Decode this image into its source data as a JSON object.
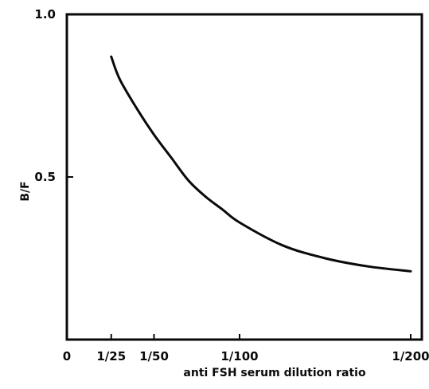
{
  "chart_data": {
    "type": "line",
    "xlabel": "anti FSH serum dilution ratio",
    "ylabel": "B/F",
    "x_tick_labels": [
      "0",
      "1/25",
      "1/50",
      "1/100",
      "1/200"
    ],
    "x_tick_values": [
      0,
      25,
      50,
      100,
      200
    ],
    "y_tick_labels": [
      "1.0",
      "0.5"
    ],
    "y_tick_values": [
      1.0,
      0.5
    ],
    "xlim": [
      0,
      200
    ],
    "ylim": [
      0,
      1.0
    ],
    "grid": false,
    "series": [
      {
        "x": [
          25,
          30,
          40,
          50,
          60,
          70,
          80,
          90,
          100,
          125,
          150,
          175,
          200
        ],
        "y": [
          0.87,
          0.8,
          0.71,
          0.63,
          0.56,
          0.49,
          0.44,
          0.4,
          0.36,
          0.29,
          0.25,
          0.225,
          0.21
        ],
        "color": "#0a0a0a"
      }
    ]
  }
}
